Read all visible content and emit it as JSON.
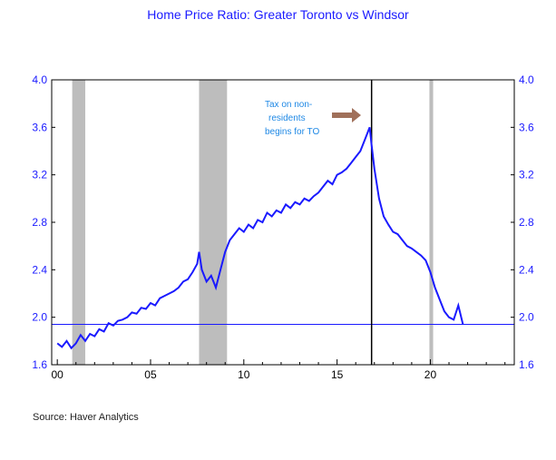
{
  "chart_data": {
    "type": "line",
    "title": "Home Price Ratio: Greater Toronto vs Windsor",
    "source": "Source:  Haver Analytics",
    "xlim": [
      1999.7,
      2024.5
    ],
    "ylim": [
      1.6,
      4.0
    ],
    "y_ticks": [
      1.6,
      2.0,
      2.4,
      2.8,
      3.2,
      3.6,
      4.0
    ],
    "y_tick_labels": [
      "1.6",
      "2.0",
      "2.4",
      "2.8",
      "3.2",
      "3.6",
      "4.0"
    ],
    "x_ticks": [
      2000,
      2005,
      2010,
      2015,
      2020
    ],
    "x_tick_labels": [
      "00",
      "05",
      "10",
      "15",
      "20"
    ],
    "grid": false,
    "dual_y_axis": true,
    "line_color": "#1a1aff",
    "reference_line": 1.94,
    "recession_bands": [
      [
        2000.8,
        2001.5
      ],
      [
        2007.6,
        2009.1
      ],
      [
        2019.95,
        2020.15
      ]
    ],
    "event_line": 2016.85,
    "annotation": {
      "lines": [
        "Tax on non-",
        "residents",
        "begins for TO"
      ],
      "arrow_color": "#a0705a"
    },
    "series": [
      {
        "x": [
          2000.0,
          2000.25,
          2000.5,
          2000.75,
          2001.0,
          2001.25,
          2001.5,
          2001.75,
          2002.0,
          2002.25,
          2002.5,
          2002.75,
          2003.0,
          2003.25,
          2003.5,
          2003.75,
          2004.0,
          2004.25,
          2004.5,
          2004.75,
          2005.0,
          2005.25,
          2005.5,
          2005.75,
          2006.0,
          2006.25,
          2006.5,
          2006.75,
          2007.0,
          2007.25,
          2007.5,
          2007.6,
          2007.75,
          2008.0,
          2008.25,
          2008.5,
          2008.75,
          2009.0,
          2009.25,
          2009.5,
          2009.75,
          2010.0,
          2010.25,
          2010.5,
          2010.75,
          2011.0,
          2011.25,
          2011.5,
          2011.75,
          2012.0,
          2012.25,
          2012.5,
          2012.75,
          2013.0,
          2013.25,
          2013.5,
          2013.75,
          2014.0,
          2014.25,
          2014.5,
          2014.75,
          2015.0,
          2015.25,
          2015.5,
          2015.75,
          2016.0,
          2016.25,
          2016.5,
          2016.75,
          2016.85,
          2017.0,
          2017.25,
          2017.5,
          2017.75,
          2018.0,
          2018.25,
          2018.5,
          2018.75,
          2019.0,
          2019.25,
          2019.5,
          2019.75,
          2020.0,
          2020.25,
          2020.5,
          2020.75,
          2021.0,
          2021.25,
          2021.5,
          2021.75
        ],
        "y": [
          1.78,
          1.75,
          1.8,
          1.74,
          1.78,
          1.85,
          1.8,
          1.86,
          1.84,
          1.9,
          1.88,
          1.95,
          1.93,
          1.97,
          1.98,
          2.0,
          2.04,
          2.03,
          2.08,
          2.07,
          2.12,
          2.1,
          2.16,
          2.18,
          2.2,
          2.22,
          2.25,
          2.3,
          2.32,
          2.38,
          2.45,
          2.55,
          2.4,
          2.3,
          2.35,
          2.25,
          2.4,
          2.55,
          2.65,
          2.7,
          2.75,
          2.72,
          2.78,
          2.75,
          2.82,
          2.8,
          2.88,
          2.85,
          2.9,
          2.88,
          2.95,
          2.92,
          2.97,
          2.95,
          3.0,
          2.98,
          3.02,
          3.05,
          3.1,
          3.15,
          3.12,
          3.2,
          3.22,
          3.25,
          3.3,
          3.35,
          3.4,
          3.5,
          3.6,
          3.45,
          3.25,
          3.0,
          2.85,
          2.78,
          2.72,
          2.7,
          2.65,
          2.6,
          2.58,
          2.55,
          2.52,
          2.48,
          2.38,
          2.25,
          2.15,
          2.05,
          2.0,
          1.98,
          2.1,
          1.94
        ]
      }
    ]
  }
}
